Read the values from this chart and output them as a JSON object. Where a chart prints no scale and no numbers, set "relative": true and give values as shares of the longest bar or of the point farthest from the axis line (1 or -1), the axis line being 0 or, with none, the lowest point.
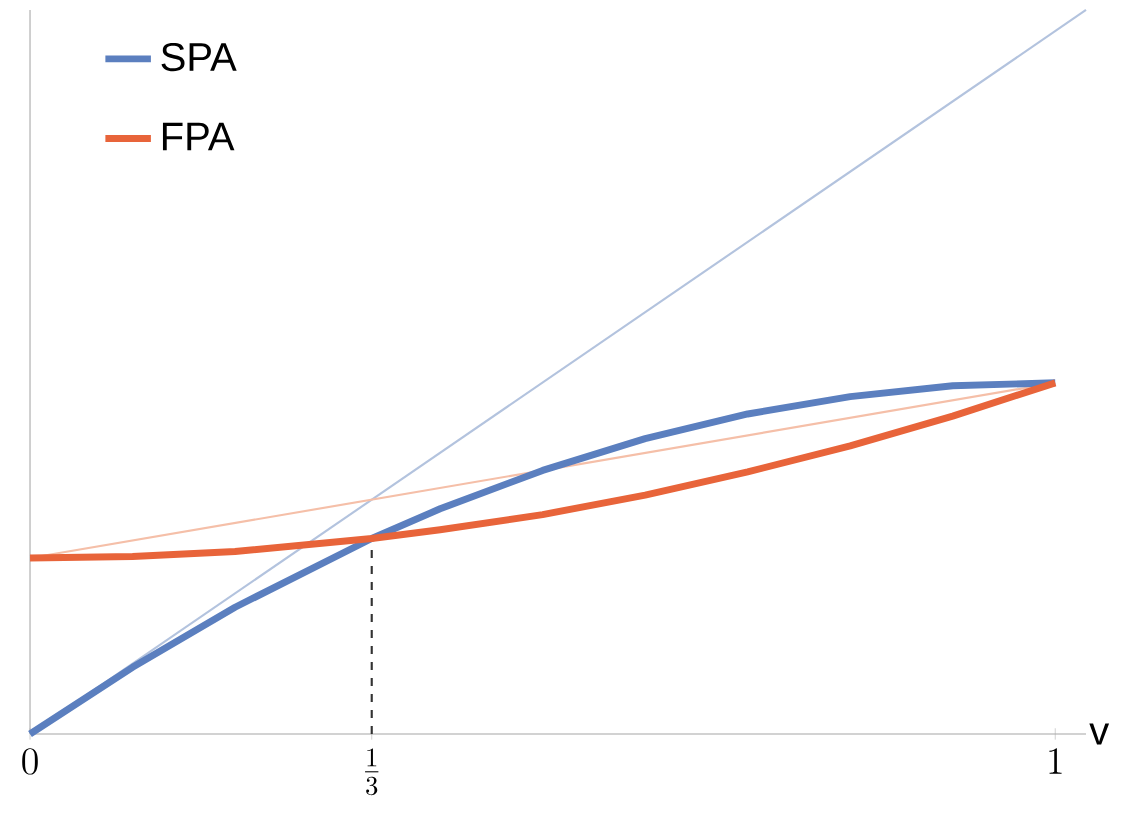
{
  "chart_data": {
    "type": "line",
    "relative": true,
    "xlabel": "v",
    "xlim": [
      0,
      1.03
    ],
    "xticks": [
      {
        "value": 0,
        "label": "0"
      },
      {
        "value": 0.3333,
        "label": "\\frac{1}{3}"
      },
      {
        "value": 1,
        "label": "1"
      }
    ],
    "legend": "top left",
    "series": [
      {
        "name": "SPA",
        "color": "#5b7fbf",
        "x": [
          0,
          0.1,
          0.2,
          0.3333,
          0.4,
          0.5,
          0.6,
          0.7,
          0.8,
          0.9,
          1
        ],
        "values": [
          0,
          0.092,
          0.175,
          0.27,
          0.311,
          0.364,
          0.408,
          0.442,
          0.466,
          0.481,
          0.485
        ]
      },
      {
        "name": "FPA",
        "color": "#e8643a",
        "x": [
          0,
          0.1,
          0.2,
          0.3333,
          0.4,
          0.5,
          0.6,
          0.7,
          0.8,
          0.9,
          1
        ],
        "values": [
          0.243,
          0.245,
          0.252,
          0.27,
          0.282,
          0.303,
          0.33,
          0.362,
          0.398,
          0.439,
          0.485
        ]
      },
      {
        "color": "#b3c3de",
        "x": [
          0,
          1.03
        ],
        "values": [
          0,
          1
        ]
      },
      {
        "color": "#f5bfa8",
        "x": [
          0,
          1
        ],
        "values": [
          0.243,
          0.485
        ]
      },
      {
        "color": "#333333",
        "line_style": "dashed",
        "x": [
          0.3333,
          0.3333
        ],
        "values": [
          0,
          0.27
        ]
      }
    ]
  }
}
